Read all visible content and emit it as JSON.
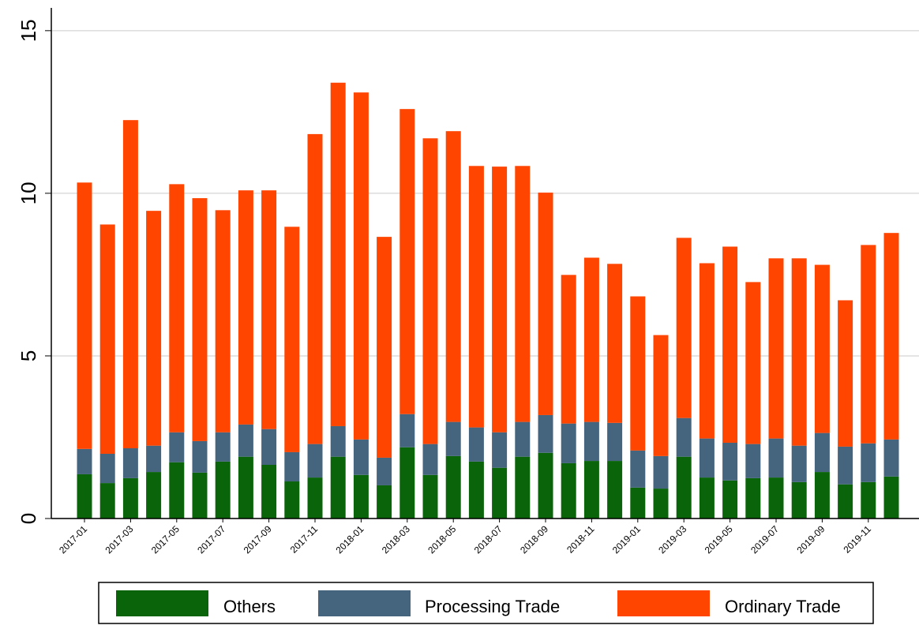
{
  "chart_data": {
    "type": "stacked_bar",
    "categories": [
      "2017-01",
      null,
      "2017-03",
      null,
      "2017-05",
      null,
      "2017-07",
      null,
      "2017-09",
      null,
      "2017-11",
      null,
      "2018-01",
      null,
      "2018-03",
      null,
      "2018-05",
      null,
      "2018-07",
      null,
      "2018-09",
      null,
      "2018-11",
      null,
      "2019-01",
      null,
      "2019-03",
      null,
      "2019-05",
      null,
      "2019-07",
      null,
      "2019-09",
      null,
      "2019-11",
      null
    ],
    "series": [
      {
        "name": "Others",
        "color": "#0a640a",
        "values": [
          1.36,
          1.09,
          1.24,
          1.43,
          1.73,
          1.41,
          1.75,
          1.9,
          1.65,
          1.14,
          1.26,
          1.9,
          1.34,
          1.02,
          2.19,
          1.34,
          1.92,
          1.75,
          1.56,
          1.9,
          2.02,
          1.7,
          1.77,
          1.77,
          0.95,
          0.92,
          1.9,
          1.26,
          1.17,
          1.24,
          1.26,
          1.12,
          1.43,
          1.05,
          1.12,
          1.29
        ]
      },
      {
        "name": "Processing Trade",
        "color": "#45657e",
        "values": [
          0.78,
          0.9,
          0.92,
          0.81,
          0.92,
          0.97,
          0.9,
          0.99,
          1.1,
          0.9,
          1.03,
          0.94,
          1.09,
          0.85,
          1.02,
          0.95,
          1.05,
          1.05,
          1.09,
          1.07,
          1.16,
          1.22,
          1.2,
          1.17,
          1.14,
          1.0,
          1.19,
          1.2,
          1.16,
          1.05,
          1.2,
          1.12,
          1.2,
          1.16,
          1.19,
          1.14
        ]
      },
      {
        "name": "Ordinary Trade",
        "color": "#ff4500",
        "values": [
          8.19,
          7.05,
          10.09,
          7.22,
          7.63,
          7.47,
          6.83,
          7.2,
          7.34,
          6.93,
          9.53,
          10.56,
          10.67,
          6.79,
          9.38,
          9.4,
          8.94,
          8.04,
          8.17,
          7.87,
          6.84,
          4.57,
          5.05,
          4.89,
          4.74,
          3.72,
          5.54,
          5.39,
          6.03,
          4.98,
          5.54,
          5.76,
          5.17,
          4.5,
          6.1,
          6.35
        ]
      }
    ],
    "ylim": [
      0,
      15.7
    ],
    "yticks": [
      0,
      5,
      10,
      15
    ],
    "grid": true
  }
}
